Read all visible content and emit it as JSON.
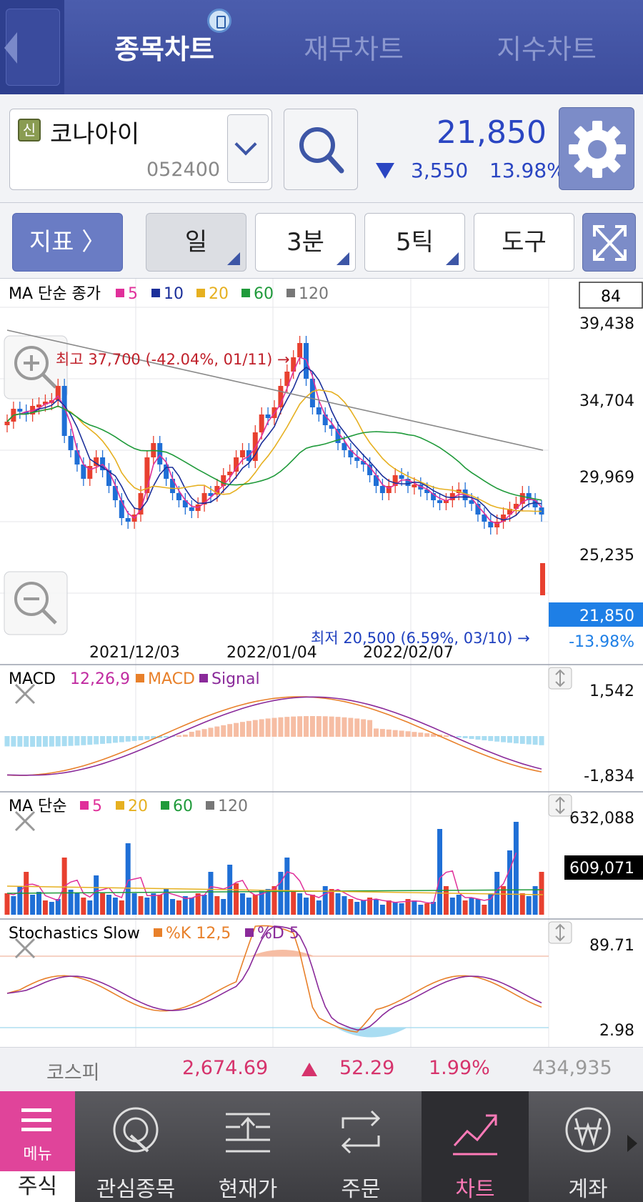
{
  "header": {
    "tabs": [
      "종목차트",
      "재무차트",
      "지수차트"
    ],
    "active_tab": 0
  },
  "stock": {
    "badge": "신",
    "name": "코나아이",
    "code": "052400",
    "price": "21,850",
    "change": "3,550",
    "change_pct": "13.98%",
    "direction": "down",
    "color": "#2a45c2"
  },
  "toolbar": {
    "indicator_label": "지표 〉",
    "period_day": "일",
    "period_3m": "3분",
    "period_5t": "5틱",
    "tools": "도구"
  },
  "price_pane": {
    "legend_title": "MA 단순 종가",
    "legend": [
      {
        "label": "5",
        "color": "#e0309a"
      },
      {
        "label": "10",
        "color": "#1b2f9a"
      },
      {
        "label": "20",
        "color": "#e6b020"
      },
      {
        "label": "60",
        "color": "#1f9a3a"
      },
      {
        "label": "120",
        "color": "#777777"
      }
    ],
    "count_box": "84",
    "y_ticks": [
      "39,438",
      "34,704",
      "29,969",
      "25,235"
    ],
    "last_price": "21,850",
    "last_pct": "-13.98%",
    "high_annotation": "최고 37,700 (-42.04%, 01/11) →",
    "low_annotation": "최저 20,500 (6.59%, 03/10) →",
    "x_labels": [
      "2021/12/03",
      "2022/01/04",
      "2022/02/07"
    ]
  },
  "macd_pane": {
    "legend_title": "MACD",
    "params": "12,26,9",
    "legend": [
      {
        "label": "MACD",
        "color": "#e8802a"
      },
      {
        "label": "Signal",
        "color": "#8a2a9a"
      }
    ],
    "y_top": "1,542",
    "y_bottom": "-1,834"
  },
  "volume_pane": {
    "legend_title": "MA 단순",
    "legend": [
      {
        "label": "5",
        "color": "#e0309a"
      },
      {
        "label": "20",
        "color": "#e6b020"
      },
      {
        "label": "60",
        "color": "#1f9a3a"
      },
      {
        "label": "120",
        "color": "#777777"
      }
    ],
    "y_top": "632,088",
    "current": "609,071"
  },
  "stoch_pane": {
    "legend_title": "Stochastics Slow",
    "legend": [
      {
        "label": "%K 12,5",
        "color": "#e8802a"
      },
      {
        "label": "%D 5",
        "color": "#8a2a9a"
      }
    ],
    "y_top": "89.71",
    "y_bottom": "2.98"
  },
  "kospi": {
    "name": "코스피",
    "value": "2,674.69",
    "change": "52.29",
    "pct": "1.99%",
    "volume": "434,935"
  },
  "nav": {
    "menu_label": "메뉴",
    "stock_label": "주식",
    "items": [
      "관심종목",
      "현재가",
      "주문",
      "차트",
      "계좌"
    ],
    "active": "차트"
  }
}
